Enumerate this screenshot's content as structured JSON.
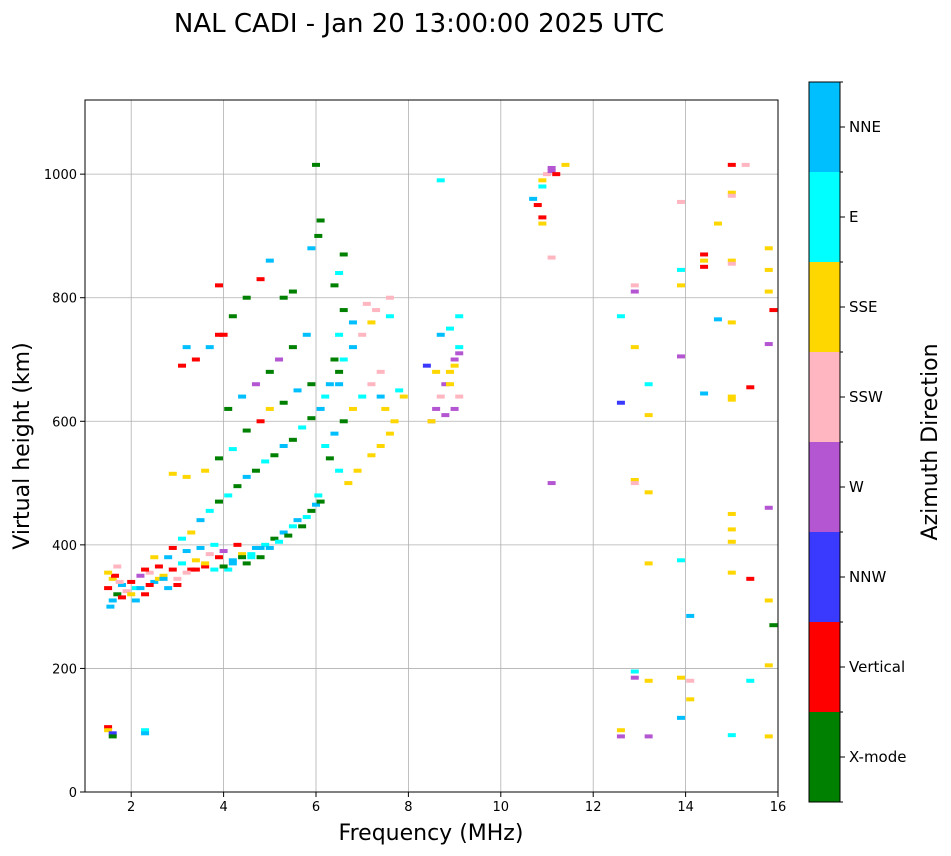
{
  "chart_data": {
    "type": "scatter",
    "title": "NAL CADI - Jan 20 13:00:00 2025 UTC",
    "xlabel": "Frequency (MHz)",
    "ylabel": "Virtual height (km)",
    "xlim": [
      1,
      16
    ],
    "ylim": [
      0,
      1120
    ],
    "xticks": [
      2,
      4,
      6,
      8,
      10,
      12,
      14,
      16
    ],
    "yticks": [
      0,
      200,
      400,
      600,
      800,
      1000
    ],
    "grid": true,
    "colorbar": {
      "title": "Azimuth Direction",
      "categories": [
        {
          "name": "X-mode",
          "color": "#008000"
        },
        {
          "name": "Vertical",
          "color": "#ff0000"
        },
        {
          "name": "NNW",
          "color": "#3a3aff"
        },
        {
          "name": "W",
          "color": "#b455d2"
        },
        {
          "name": "SSW",
          "color": "#ffb6c1"
        },
        {
          "name": "SSE",
          "color": "#ffd700"
        },
        {
          "name": "E",
          "color": "#00ffff"
        },
        {
          "name": "NNE",
          "color": "#00bfff"
        }
      ]
    },
    "points": [
      [
        1.5,
        330,
        1
      ],
      [
        1.6,
        345,
        5
      ],
      [
        1.7,
        320,
        0
      ],
      [
        1.8,
        335,
        7
      ],
      [
        1.9,
        325,
        4
      ],
      [
        2.0,
        340,
        1
      ],
      [
        2.1,
        330,
        6
      ],
      [
        2.2,
        350,
        3
      ],
      [
        2.3,
        320,
        1
      ],
      [
        2.4,
        355,
        4
      ],
      [
        2.5,
        340,
        7
      ],
      [
        2.6,
        365,
        1
      ],
      [
        2.7,
        350,
        5
      ],
      [
        2.8,
        380,
        7
      ],
      [
        2.9,
        360,
        1
      ],
      [
        3.0,
        345,
        4
      ],
      [
        3.1,
        370,
        6
      ],
      [
        3.2,
        390,
        7
      ],
      [
        3.3,
        360,
        1
      ],
      [
        3.4,
        375,
        5
      ],
      [
        3.5,
        395,
        7
      ],
      [
        3.6,
        365,
        1
      ],
      [
        3.7,
        385,
        4
      ],
      [
        3.8,
        400,
        6
      ],
      [
        3.9,
        380,
        1
      ],
      [
        4.0,
        390,
        3
      ],
      [
        4.1,
        360,
        6
      ],
      [
        4.2,
        375,
        7
      ],
      [
        4.3,
        400,
        1
      ],
      [
        4.4,
        385,
        5
      ],
      [
        4.5,
        370,
        0
      ],
      [
        4.6,
        380,
        6
      ],
      [
        4.7,
        395,
        7
      ],
      [
        4.8,
        380,
        0
      ],
      [
        4.9,
        400,
        6
      ],
      [
        5.0,
        395,
        7
      ],
      [
        5.1,
        410,
        0
      ],
      [
        5.2,
        405,
        6
      ],
      [
        5.3,
        420,
        7
      ],
      [
        5.4,
        415,
        0
      ],
      [
        5.5,
        430,
        6
      ],
      [
        5.6,
        440,
        7
      ],
      [
        5.7,
        430,
        0
      ],
      [
        5.8,
        445,
        6
      ],
      [
        5.9,
        455,
        0
      ],
      [
        6.0,
        465,
        7
      ],
      [
        6.05,
        480,
        6
      ],
      [
        6.1,
        470,
        0
      ],
      [
        1.6,
        310,
        7
      ],
      [
        1.8,
        315,
        1
      ],
      [
        2.0,
        320,
        5
      ],
      [
        2.2,
        330,
        7
      ],
      [
        2.4,
        335,
        1
      ],
      [
        2.6,
        345,
        5
      ],
      [
        2.8,
        330,
        7
      ],
      [
        3.0,
        335,
        1
      ],
      [
        3.2,
        355,
        4
      ],
      [
        3.4,
        360,
        1
      ],
      [
        3.6,
        370,
        5
      ],
      [
        3.8,
        360,
        6
      ],
      [
        4.0,
        365,
        0
      ],
      [
        4.2,
        370,
        7
      ],
      [
        4.4,
        380,
        0
      ],
      [
        4.6,
        385,
        6
      ],
      [
        4.8,
        395,
        7
      ],
      [
        1.55,
        300,
        7
      ],
      [
        1.65,
        350,
        1
      ],
      [
        1.75,
        340,
        4
      ],
      [
        2.1,
        310,
        7
      ],
      [
        2.3,
        360,
        1
      ],
      [
        2.5,
        380,
        5
      ],
      [
        2.7,
        345,
        7
      ],
      [
        2.9,
        395,
        1
      ],
      [
        3.1,
        410,
        6
      ],
      [
        3.3,
        420,
        5
      ],
      [
        3.5,
        440,
        7
      ],
      [
        3.7,
        455,
        6
      ],
      [
        3.9,
        470,
        0
      ],
      [
        4.1,
        480,
        6
      ],
      [
        4.3,
        495,
        0
      ],
      [
        4.5,
        510,
        7
      ],
      [
        4.7,
        520,
        0
      ],
      [
        4.9,
        535,
        6
      ],
      [
        5.1,
        545,
        0
      ],
      [
        5.3,
        560,
        7
      ],
      [
        5.5,
        570,
        0
      ],
      [
        5.7,
        590,
        6
      ],
      [
        5.9,
        605,
        0
      ],
      [
        3.6,
        520,
        5
      ],
      [
        3.9,
        540,
        0
      ],
      [
        4.2,
        555,
        6
      ],
      [
        4.5,
        585,
        0
      ],
      [
        4.8,
        600,
        1
      ],
      [
        5.0,
        620,
        5
      ],
      [
        5.3,
        630,
        0
      ],
      [
        5.6,
        650,
        7
      ],
      [
        5.9,
        660,
        0
      ],
      [
        4.1,
        620,
        0
      ],
      [
        4.4,
        640,
        7
      ],
      [
        4.7,
        660,
        3
      ],
      [
        5.0,
        680,
        0
      ],
      [
        5.2,
        700,
        3
      ],
      [
        5.5,
        720,
        0
      ],
      [
        5.8,
        740,
        7
      ],
      [
        4.0,
        740,
        1
      ],
      [
        4.2,
        770,
        0
      ],
      [
        4.5,
        800,
        0
      ],
      [
        4.8,
        830,
        1
      ],
      [
        5.0,
        860,
        7
      ],
      [
        5.3,
        800,
        0
      ],
      [
        5.5,
        810,
        0
      ],
      [
        5.9,
        880,
        7
      ],
      [
        6.05,
        900,
        0
      ],
      [
        6.1,
        925,
        0
      ],
      [
        6.0,
        1015,
        0
      ],
      [
        3.7,
        720,
        7
      ],
      [
        3.9,
        740,
        1
      ],
      [
        3.4,
        700,
        1
      ],
      [
        3.2,
        720,
        7
      ],
      [
        3.1,
        690,
        1
      ],
      [
        3.9,
        820,
        1
      ],
      [
        6.1,
        620,
        7
      ],
      [
        6.2,
        640,
        6
      ],
      [
        6.3,
        660,
        7
      ],
      [
        6.5,
        680,
        0
      ],
      [
        6.6,
        700,
        6
      ],
      [
        6.8,
        720,
        7
      ],
      [
        7.0,
        740,
        4
      ],
      [
        7.2,
        760,
        5
      ],
      [
        6.2,
        560,
        6
      ],
      [
        6.4,
        580,
        7
      ],
      [
        6.6,
        600,
        0
      ],
      [
        6.8,
        620,
        5
      ],
      [
        7.0,
        640,
        6
      ],
      [
        7.2,
        660,
        4
      ],
      [
        7.4,
        640,
        7
      ],
      [
        7.5,
        620,
        5
      ],
      [
        7.7,
        600,
        5
      ],
      [
        7.6,
        580,
        5
      ],
      [
        7.4,
        560,
        5
      ],
      [
        7.2,
        545,
        5
      ],
      [
        6.9,
        520,
        5
      ],
      [
        6.7,
        500,
        5
      ],
      [
        6.5,
        520,
        6
      ],
      [
        6.3,
        540,
        0
      ],
      [
        6.5,
        660,
        7
      ],
      [
        6.4,
        700,
        0
      ],
      [
        6.5,
        740,
        6
      ],
      [
        6.6,
        780,
        0
      ],
      [
        6.8,
        760,
        7
      ],
      [
        6.4,
        820,
        0
      ],
      [
        6.5,
        840,
        6
      ],
      [
        6.6,
        870,
        0
      ],
      [
        7.1,
        790,
        4
      ],
      [
        7.3,
        780,
        4
      ],
      [
        7.6,
        770,
        6
      ],
      [
        7.6,
        800,
        4
      ],
      [
        7.4,
        680,
        4
      ],
      [
        7.8,
        650,
        6
      ],
      [
        7.9,
        640,
        5
      ],
      [
        8.5,
        600,
        3
      ],
      [
        8.6,
        620,
        3
      ],
      [
        8.7,
        640,
        4
      ],
      [
        8.8,
        660,
        3
      ],
      [
        8.9,
        680,
        5
      ],
      [
        9.0,
        700,
        3
      ],
      [
        9.1,
        720,
        6
      ],
      [
        8.7,
        740,
        7
      ],
      [
        8.9,
        750,
        6
      ],
      [
        8.8,
        610,
        3
      ],
      [
        9.0,
        620,
        3
      ],
      [
        9.1,
        640,
        4
      ],
      [
        8.6,
        680,
        5
      ],
      [
        8.9,
        660,
        5
      ],
      [
        9.0,
        690,
        5
      ],
      [
        9.1,
        710,
        3
      ],
      [
        9.1,
        770,
        6
      ],
      [
        8.7,
        990,
        6
      ],
      [
        8.4,
        690,
        2
      ],
      [
        8.5,
        600,
        5
      ],
      [
        10.7,
        960,
        7
      ],
      [
        10.8,
        950,
        1
      ],
      [
        10.9,
        980,
        6
      ],
      [
        10.9,
        990,
        5
      ],
      [
        11.0,
        1000,
        4
      ],
      [
        11.1,
        1005,
        3
      ],
      [
        11.2,
        1000,
        1
      ],
      [
        11.1,
        1010,
        3
      ],
      [
        11.4,
        1015,
        5
      ],
      [
        10.9,
        930,
        1
      ],
      [
        10.9,
        920,
        5
      ],
      [
        11.1,
        865,
        4
      ],
      [
        11.1,
        500,
        3
      ],
      [
        12.6,
        630,
        2
      ],
      [
        12.6,
        770,
        6
      ],
      [
        12.9,
        820,
        4
      ],
      [
        12.9,
        810,
        3
      ],
      [
        12.9,
        720,
        5
      ],
      [
        13.2,
        660,
        6
      ],
      [
        13.2,
        610,
        5
      ],
      [
        12.9,
        505,
        5
      ],
      [
        12.9,
        500,
        4
      ],
      [
        13.2,
        485,
        5
      ],
      [
        13.2,
        370,
        5
      ],
      [
        12.9,
        195,
        6
      ],
      [
        12.9,
        185,
        3
      ],
      [
        13.2,
        180,
        5
      ],
      [
        12.6,
        100,
        5
      ],
      [
        12.6,
        90,
        3
      ],
      [
        13.2,
        90,
        3
      ],
      [
        13.9,
        955,
        4
      ],
      [
        13.9,
        845,
        6
      ],
      [
        13.9,
        820,
        5
      ],
      [
        13.9,
        705,
        3
      ],
      [
        14.4,
        870,
        1
      ],
      [
        14.4,
        860,
        5
      ],
      [
        14.4,
        850,
        1
      ],
      [
        14.7,
        920,
        5
      ],
      [
        14.7,
        765,
        7
      ],
      [
        14.4,
        645,
        7
      ],
      [
        13.9,
        375,
        6
      ],
      [
        14.1,
        285,
        7
      ],
      [
        13.9,
        185,
        5
      ],
      [
        14.1,
        180,
        4
      ],
      [
        14.1,
        150,
        5
      ],
      [
        13.9,
        120,
        7
      ],
      [
        15.0,
        1015,
        1
      ],
      [
        15.3,
        1015,
        4
      ],
      [
        15.0,
        970,
        5
      ],
      [
        15.0,
        965,
        4
      ],
      [
        15.0,
        860,
        5
      ],
      [
        15.0,
        855,
        4
      ],
      [
        15.0,
        760,
        5
      ],
      [
        15.0,
        640,
        5
      ],
      [
        15.0,
        635,
        5
      ],
      [
        15.4,
        655,
        1
      ],
      [
        15.0,
        450,
        5
      ],
      [
        15.0,
        425,
        5
      ],
      [
        15.0,
        405,
        5
      ],
      [
        15.0,
        355,
        5
      ],
      [
        15.4,
        345,
        1
      ],
      [
        15.4,
        180,
        6
      ],
      [
        15.0,
        92,
        6
      ],
      [
        15.8,
        880,
        5
      ],
      [
        15.8,
        845,
        5
      ],
      [
        15.8,
        810,
        5
      ],
      [
        15.9,
        780,
        1
      ],
      [
        15.8,
        725,
        3
      ],
      [
        15.8,
        460,
        3
      ],
      [
        15.8,
        310,
        5
      ],
      [
        15.9,
        270,
        0
      ],
      [
        15.8,
        205,
        5
      ],
      [
        15.8,
        90,
        5
      ],
      [
        1.5,
        105,
        1
      ],
      [
        1.5,
        100,
        5
      ],
      [
        1.6,
        95,
        2
      ],
      [
        1.6,
        90,
        0
      ],
      [
        2.3,
        100,
        6
      ],
      [
        2.3,
        95,
        7
      ],
      [
        1.5,
        355,
        5
      ],
      [
        1.7,
        365,
        4
      ],
      [
        2.9,
        515,
        5
      ],
      [
        3.2,
        510,
        5
      ]
    ]
  }
}
